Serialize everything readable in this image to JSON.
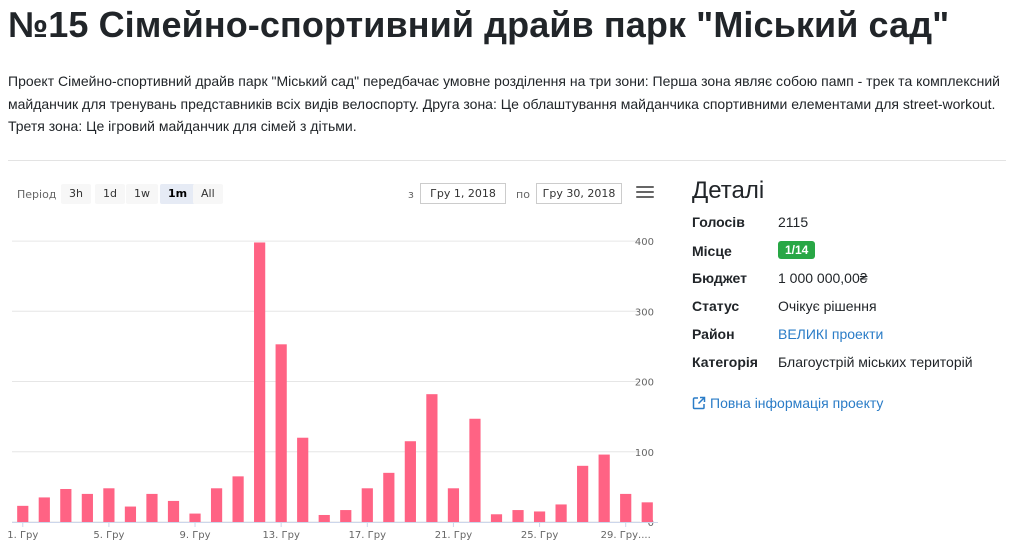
{
  "page": {
    "title": "№15 Сімейно-спортивний драйв парк \"Міський сад\"",
    "description": "Проект Сімейно-спортивний драйв парк \"Міський сад\" передбачає умовне розділення на три зони: Перша зона являє собою памп - трек та комплексний майданчик для тренувань представників всіх видів велоспорту. Друга зона:  Це  облаштування майданчика спортивними елементами для street-workout. Третя зона: Це ігровий майданчик для сімей з дітьми."
  },
  "range_selector": {
    "period_label": "Період",
    "buttons": [
      "3h",
      "1d",
      "1w",
      "1m",
      "All"
    ],
    "active": "1m",
    "from_label": "з",
    "from_value": "Гру 1, 2018",
    "to_label": "по",
    "to_value": "Гру 30, 2018",
    "menu_icon": "hamburger-menu-icon"
  },
  "chart_data": {
    "type": "bar",
    "x": [
      "1. Гру",
      "2. Гру",
      "3. Гру",
      "4. Гру",
      "5. Гру",
      "6. Гру",
      "7. Гру",
      "8. Гру",
      "9. Гру",
      "10. Гру",
      "11. Гру",
      "12. Гру",
      "13. Гру",
      "14. Гру",
      "15. Гру",
      "16. Гру",
      "17. Гру",
      "18. Гру",
      "19. Гру",
      "20. Гру",
      "21. Гру",
      "22. Гру",
      "23. Гру",
      "24. Гру",
      "25. Гру",
      "26. Гру",
      "27. Гру",
      "28. Гру",
      "29. Гру",
      "30. Гру"
    ],
    "values": [
      23,
      35,
      47,
      40,
      48,
      22,
      40,
      30,
      12,
      48,
      65,
      398,
      253,
      120,
      10,
      17,
      48,
      70,
      115,
      182,
      48,
      147,
      11,
      17,
      15,
      25,
      80,
      96,
      40,
      28
    ],
    "x_tick_labels": [
      "1. Гру",
      "5. Гру",
      "9. Гру",
      "13. Гру",
      "17. Гру",
      "21. Гру",
      "25. Гру",
      "29. Гру...."
    ],
    "y_ticks": [
      0,
      100,
      200,
      300,
      400
    ],
    "ylim": [
      0,
      430
    ],
    "color": "#ff6384",
    "grid": true
  },
  "details": {
    "heading": "Деталі",
    "rows": [
      {
        "label": "Голосів",
        "value": "2115"
      },
      {
        "label": "Місце",
        "value": "1/14"
      },
      {
        "label": "Бюджет",
        "value": "1 000 000,00₴"
      },
      {
        "label": "Статус",
        "value": "Очікує рішення"
      },
      {
        "label": "Район",
        "value": "ВЕЛИКІ проекти"
      },
      {
        "label": "Категорія",
        "value": "Благоустрій міських територій"
      }
    ],
    "badge_color": "#28a745",
    "link_color": "#2a7cc7",
    "full_info_link": "Повна інформація проекту"
  }
}
